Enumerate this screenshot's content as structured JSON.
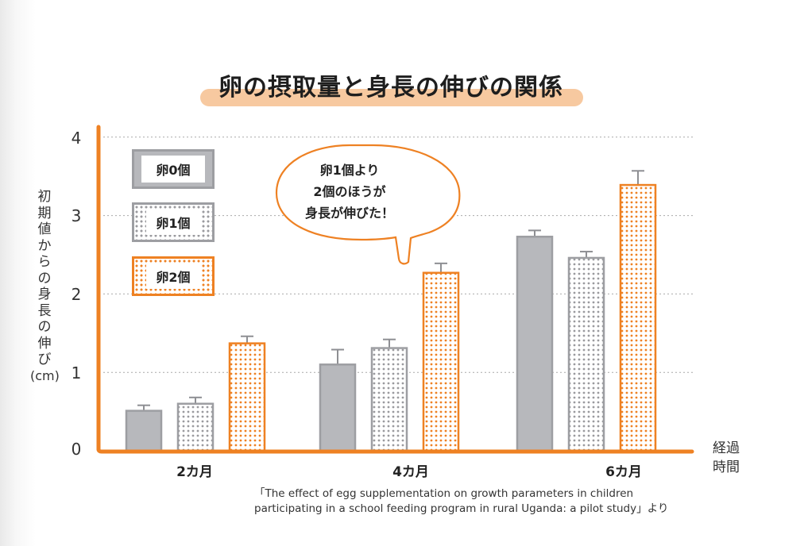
{
  "title": "卵の摂取量と身長の伸びの関係",
  "y_axis": {
    "label_chars": [
      "初",
      "期",
      "値",
      "か",
      "ら",
      "の",
      "身",
      "長",
      "の",
      "伸",
      "び"
    ],
    "unit": "(cm)",
    "ticks": [
      "0",
      "1",
      "2",
      "3",
      "4"
    ]
  },
  "x_axis": {
    "label_line1": "経過",
    "label_line2": "時間",
    "categories": [
      "2カ月",
      "4カ月",
      "6カ月"
    ]
  },
  "legend": [
    {
      "label": "卵0個",
      "style": "solid-gray"
    },
    {
      "label": "卵1個",
      "style": "dotted-gray"
    },
    {
      "label": "卵2個",
      "style": "dotted-orange"
    }
  ],
  "callout": {
    "line1": "卵1個より",
    "line2": "2個のほうが",
    "line3": "身長が伸びた！"
  },
  "source": {
    "line1": "「The effect of egg supplementation on growth  parameters in children",
    "line2": "participating in a school feeding program in rural Uganda: a pilot study」より"
  },
  "colors": {
    "accent_orange": "#ee8123",
    "gray_fill": "#b7b8bc",
    "gray_border": "#9d9ea2",
    "title_highlight": "#f7c9a0"
  },
  "chart_data": {
    "type": "bar",
    "title": "卵の摂取量と身長の伸びの関係",
    "xlabel": "経過時間",
    "ylabel": "初期値からの身長の伸び(cm)",
    "categories": [
      "2カ月",
      "4カ月",
      "6カ月"
    ],
    "series": [
      {
        "name": "卵0個",
        "values": [
          0.51,
          1.1,
          2.73
        ],
        "error_upper": [
          0.58,
          1.29,
          2.81
        ]
      },
      {
        "name": "卵1個",
        "values": [
          0.6,
          1.31,
          2.46
        ],
        "error_upper": [
          0.68,
          1.42,
          2.54
        ]
      },
      {
        "name": "卵2個",
        "values": [
          1.37,
          2.27,
          3.39
        ],
        "error_upper": [
          1.46,
          2.39,
          3.57
        ]
      }
    ],
    "ylim": [
      0,
      4
    ],
    "yticks": [
      0,
      1,
      2,
      3,
      4
    ],
    "grid": "horizontal dotted",
    "legend_position": "upper-left inside",
    "annotation": "卵1個より2個のほうが身長が伸びた！"
  }
}
